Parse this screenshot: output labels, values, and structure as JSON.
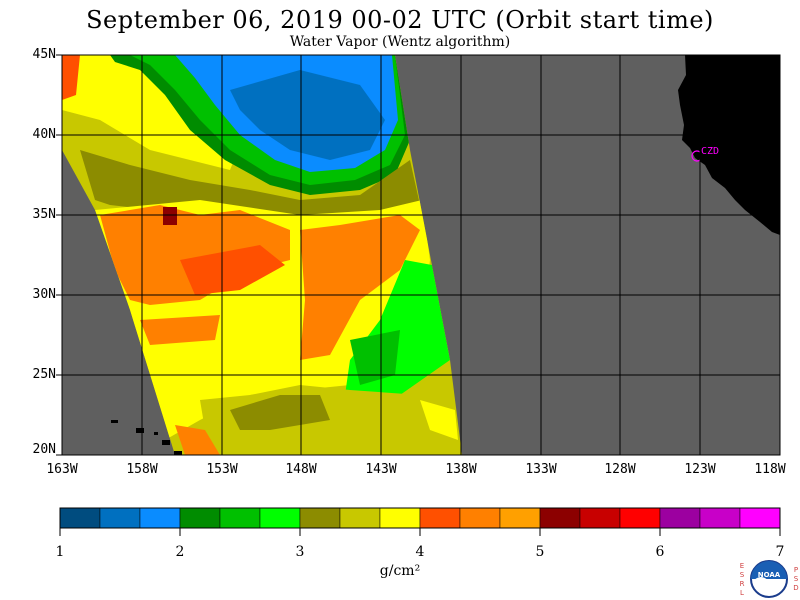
{
  "title": "September 06, 2019  00-02 UTC  (Orbit start time)",
  "subtitle": "Water Vapor (Wentz algorithm)",
  "lat_labels": [
    "45N",
    "40N",
    "35N",
    "30N",
    "25N",
    "20N"
  ],
  "lon_labels": [
    "163W",
    "158W",
    "153W",
    "148W",
    "143W",
    "138W",
    "133W",
    "128W",
    "123W",
    "118W"
  ],
  "station_label": "CZD",
  "colorbar": {
    "tick_labels": [
      "1",
      "2",
      "3",
      "4",
      "5",
      "6",
      "7"
    ],
    "units": "g/cm²",
    "colors": [
      "#004c7f",
      "#0070c0",
      "#0a8cff",
      "#008c00",
      "#00c000",
      "#00ff00",
      "#8c8c00",
      "#c8c800",
      "#ffff00",
      "#ff5000",
      "#ff8000",
      "#ffa000",
      "#8c0000",
      "#c80000",
      "#ff0000",
      "#9c00a0",
      "#c800c8",
      "#ff00ff"
    ]
  },
  "colors": {
    "land": "#000000",
    "no_data": "#5f5f5f",
    "grid": "#000000",
    "station": "#ff00ff"
  },
  "logo": {
    "left_letters": [
      "E",
      "S",
      "R",
      "L"
    ],
    "right_letters": [
      "P",
      "S",
      "D"
    ],
    "text": "NOAA"
  }
}
